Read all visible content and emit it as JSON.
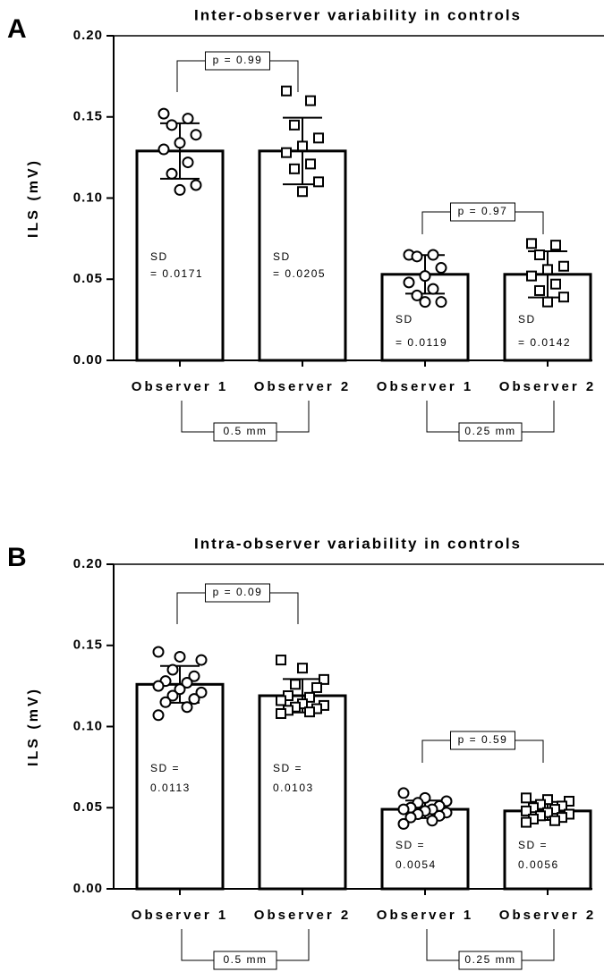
{
  "chart_data": [
    {
      "type": "bar",
      "panel": "A",
      "title": "Inter-observer variability in controls",
      "ylabel": "ILS (mV)",
      "categories": [
        "Observer 1",
        "Observer 2",
        "Observer 1",
        "Observer 2"
      ],
      "values": [
        0.129,
        0.129,
        0.053,
        0.053
      ],
      "errors": [
        0.0171,
        0.0205,
        0.0119,
        0.0142
      ],
      "error_labels": [
        [
          "SD",
          "= 0.0171"
        ],
        [
          "SD",
          "= 0.0205"
        ],
        [
          "SD",
          "= 0.0119"
        ],
        [
          "SD",
          "= 0.0142"
        ]
      ],
      "markers": [
        "circle",
        "square",
        "circle",
        "square"
      ],
      "points": [
        [
          0.152,
          0.149,
          0.145,
          0.139,
          0.134,
          0.13,
          0.122,
          0.115,
          0.108,
          0.105
        ],
        [
          0.166,
          0.16,
          0.145,
          0.137,
          0.132,
          0.128,
          0.121,
          0.118,
          0.11,
          0.104
        ],
        [
          0.065,
          0.065,
          0.064,
          0.057,
          0.052,
          0.048,
          0.044,
          0.04,
          0.036,
          0.036
        ],
        [
          0.072,
          0.071,
          0.065,
          0.058,
          0.056,
          0.052,
          0.047,
          0.043,
          0.039,
          0.036
        ]
      ],
      "comparisons": [
        "p = 0.99",
        "p = 0.97"
      ],
      "groups": [
        "0.5 mm",
        "0.25 mm"
      ],
      "ylim": [
        0,
        0.2
      ],
      "yticks": [
        {
          "value": 0,
          "label": "0.00"
        },
        {
          "value": 0.05,
          "label": "0.05"
        },
        {
          "value": 0.1,
          "label": "0.10"
        },
        {
          "value": 0.15,
          "label": "0.15"
        },
        {
          "value": 0.2,
          "label": "0.20"
        }
      ]
    },
    {
      "type": "bar",
      "panel": "B",
      "title": "Intra-observer variability in controls",
      "ylabel": "ILS (mV)",
      "categories": [
        "Observer 1",
        "Observer 2",
        "Observer 1",
        "Observer 2"
      ],
      "values": [
        0.126,
        0.119,
        0.049,
        0.048
      ],
      "errors": [
        0.0113,
        0.0103,
        0.0054,
        0.0056
      ],
      "error_labels": [
        [
          "SD =",
          "0.0113"
        ],
        [
          "SD =",
          "0.0103"
        ],
        [
          "SD =",
          "0.0054"
        ],
        [
          "SD =",
          "0.0056"
        ]
      ],
      "markers": [
        "circle",
        "square",
        "circle",
        "square"
      ],
      "points": [
        [
          0.146,
          0.143,
          0.141,
          0.135,
          0.131,
          0.128,
          0.127,
          0.125,
          0.123,
          0.121,
          0.119,
          0.117,
          0.115,
          0.112,
          0.107
        ],
        [
          0.141,
          0.136,
          0.129,
          0.126,
          0.124,
          0.119,
          0.118,
          0.116,
          0.114,
          0.113,
          0.112,
          0.111,
          0.11,
          0.109,
          0.108
        ],
        [
          0.059,
          0.056,
          0.054,
          0.053,
          0.051,
          0.05,
          0.049,
          0.049,
          0.048,
          0.047,
          0.046,
          0.045,
          0.044,
          0.042,
          0.04
        ],
        [
          0.056,
          0.055,
          0.054,
          0.052,
          0.051,
          0.05,
          0.049,
          0.048,
          0.047,
          0.046,
          0.045,
          0.044,
          0.043,
          0.042,
          0.041
        ]
      ],
      "comparisons": [
        "p = 0.09",
        "p = 0.59"
      ],
      "groups": [
        "0.5 mm",
        "0.25 mm"
      ],
      "ylim": [
        0,
        0.2
      ],
      "yticks": [
        {
          "value": 0,
          "label": "0.00"
        },
        {
          "value": 0.05,
          "label": "0.05"
        },
        {
          "value": 0.1,
          "label": "0.10"
        },
        {
          "value": 0.15,
          "label": "0.15"
        },
        {
          "value": 0.2,
          "label": "0.20"
        }
      ]
    }
  ]
}
